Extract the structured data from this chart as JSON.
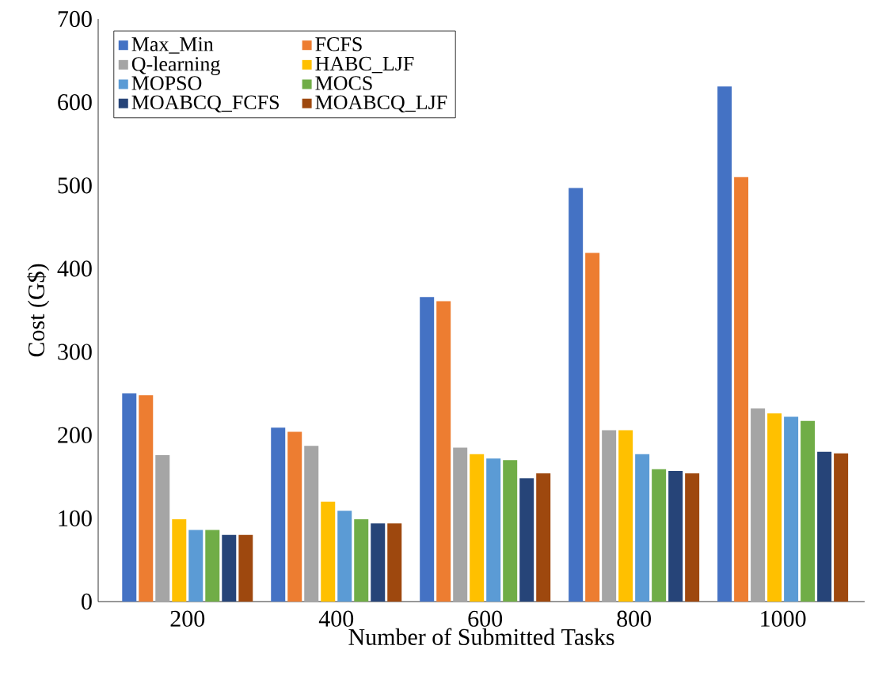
{
  "chart_data": {
    "type": "bar",
    "xlabel": "Number of Submitted Tasks",
    "ylabel": "Cost (G$)",
    "categories": [
      "200",
      "400",
      "600",
      "800",
      "1000"
    ],
    "series": [
      {
        "name": "Max_Min",
        "color": "#4472c4",
        "values": [
          250,
          209,
          366,
          497,
          619
        ]
      },
      {
        "name": "FCFS",
        "color": "#ed7d31",
        "values": [
          248,
          204,
          361,
          419,
          510
        ]
      },
      {
        "name": "Q-learning",
        "color": "#a5a5a5",
        "values": [
          176,
          187,
          185,
          206,
          232
        ]
      },
      {
        "name": "HABC_LJF",
        "color": "#ffc000",
        "values": [
          99,
          120,
          177,
          206,
          226
        ]
      },
      {
        "name": "MOPSO",
        "color": "#5b9bd5",
        "values": [
          86,
          109,
          172,
          177,
          222
        ]
      },
      {
        "name": "MOCS",
        "color": "#70ad47",
        "values": [
          86,
          99,
          170,
          159,
          217
        ]
      },
      {
        "name": "MOABCQ_FCFS",
        "color": "#264478",
        "values": [
          80,
          94,
          148,
          157,
          180
        ]
      },
      {
        "name": "MOABCQ_LJF",
        "color": "#9e480e",
        "values": [
          80,
          94,
          154,
          154,
          178
        ]
      }
    ],
    "ylim": [
      0,
      700
    ],
    "yticks": [
      0,
      100,
      200,
      300,
      400,
      500,
      600,
      700
    ],
    "grid": false,
    "legend": "top left"
  }
}
